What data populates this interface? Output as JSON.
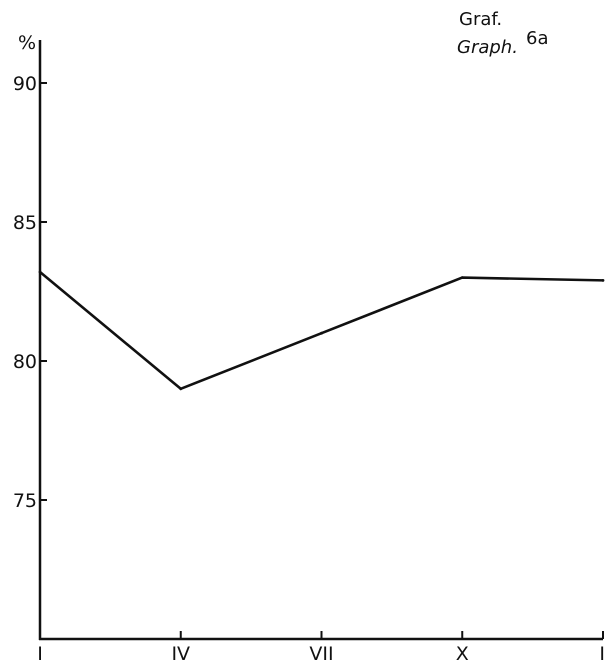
{
  "chart_data": {
    "type": "line",
    "title_line1": "Graf.",
    "title_line2": "Graph.",
    "title_number": "6a",
    "y_unit": "%",
    "ylim": [
      70,
      91
    ],
    "y_ticks": [
      "90",
      "85",
      "80",
      "75"
    ],
    "y_tick_values": [
      90,
      85,
      80,
      75
    ],
    "categories": [
      "I",
      "IV",
      "VII",
      "X",
      "I"
    ],
    "x": [
      0,
      3,
      6,
      9,
      12
    ],
    "series": [
      {
        "values": [
          83.2,
          79.0,
          81.0,
          83.0,
          82.9
        ]
      }
    ],
    "grid": false,
    "colors": {
      "line": "#111111",
      "axis": "#111111"
    }
  }
}
